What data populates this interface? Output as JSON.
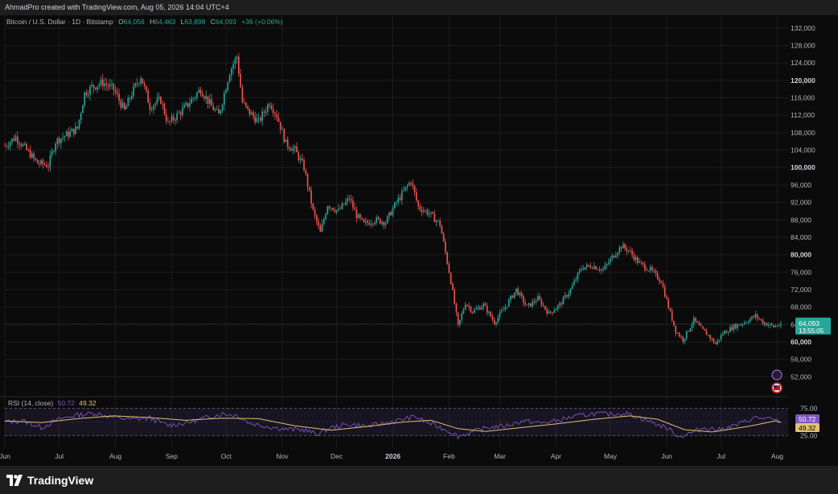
{
  "header": {
    "caption": "AhmadPro created with TradingView.com, Aug 05, 2026 14:04 UTC+4"
  },
  "legend": {
    "symbol": "Bitcoin / U.S. Dollar · 1D · Bitstamp",
    "o_label": "O",
    "o_value": "64,056",
    "h_label": "H",
    "h_value": "64,463",
    "l_label": "L",
    "l_value": "63,898",
    "c_label": "C",
    "c_value": "64,093",
    "change": "+36 (+0.06%)"
  },
  "colors": {
    "up": "#26a69a",
    "down": "#ef5350",
    "rsi": "#7e57c2",
    "rsi_ma": "#e2c26a",
    "grid": "#1c1c1c",
    "axis_text": "#b2b5be",
    "price_tag": "#26a69a"
  },
  "price_tag": {
    "price": "64,093",
    "countdown": "13:55:05",
    "value": 64093
  },
  "rsi_panel": {
    "label": "RSI (14, close)",
    "rsi_value": "50.72",
    "ma_value": "49.32",
    "upper_band": "75.00",
    "lower_band": "25.00",
    "ylim": [
      10,
      90
    ]
  },
  "icons": [
    "news-flag-icon",
    "us-flag-icon"
  ],
  "footer": {
    "brand": "TradingView",
    "brand_icon": "tradingview-logo-icon"
  },
  "chart_data": {
    "type": "candlestick",
    "title": "Bitcoin / U.S. Dollar · 1D · Bitstamp",
    "y_ticks": [
      "132,000",
      "128,000",
      "124,000",
      "120,000",
      "116,000",
      "112,000",
      "108,000",
      "104,000",
      "100,000",
      "96,000",
      "92,000",
      "88,000",
      "84,000",
      "80,000",
      "76,000",
      "72,000",
      "68,000",
      "64,000",
      "60,000",
      "56,000",
      "52,000"
    ],
    "y_tick_values": [
      132000,
      128000,
      124000,
      120000,
      116000,
      112000,
      108000,
      104000,
      100000,
      96000,
      92000,
      88000,
      84000,
      80000,
      76000,
      72000,
      68000,
      64000,
      60000,
      56000,
      52000
    ],
    "bold_ticks": [
      "120,000",
      "100,000",
      "80,000",
      "60,000"
    ],
    "ylim": [
      48000,
      134000
    ],
    "x_ticks": [
      {
        "label": "Jun",
        "day": 0
      },
      {
        "label": "Jul",
        "day": 30
      },
      {
        "label": "Aug",
        "day": 61
      },
      {
        "label": "Sep",
        "day": 92
      },
      {
        "label": "Oct",
        "day": 122
      },
      {
        "label": "Nov",
        "day": 153
      },
      {
        "label": "Dec",
        "day": 183
      },
      {
        "label": "2026",
        "day": 214
      },
      {
        "label": "Feb",
        "day": 245
      },
      {
        "label": "Mar",
        "day": 273
      },
      {
        "label": "Apr",
        "day": 304
      },
      {
        "label": "May",
        "day": 334
      },
      {
        "label": "Jun",
        "day": 365
      },
      {
        "label": "Jul",
        "day": 395
      },
      {
        "label": "Aug",
        "day": 426
      }
    ],
    "bold_x_ticks": [
      "2026"
    ],
    "close_path": [
      [
        0,
        105000
      ],
      [
        6,
        107000
      ],
      [
        12,
        104000
      ],
      [
        18,
        101000
      ],
      [
        24,
        100500
      ],
      [
        28,
        106000
      ],
      [
        34,
        107500
      ],
      [
        40,
        109000
      ],
      [
        44,
        117000
      ],
      [
        48,
        118500
      ],
      [
        54,
        119500
      ],
      [
        60,
        118000
      ],
      [
        66,
        113000
      ],
      [
        70,
        117000
      ],
      [
        75,
        121000
      ],
      [
        80,
        114000
      ],
      [
        86,
        115500
      ],
      [
        90,
        110000
      ],
      [
        95,
        112000
      ],
      [
        100,
        114000
      ],
      [
        108,
        118000
      ],
      [
        114,
        114000
      ],
      [
        118,
        112000
      ],
      [
        124,
        122000
      ],
      [
        128,
        125500
      ],
      [
        131,
        115000
      ],
      [
        134,
        113000
      ],
      [
        140,
        110500
      ],
      [
        146,
        115000
      ],
      [
        150,
        112000
      ],
      [
        155,
        105500
      ],
      [
        160,
        104000
      ],
      [
        165,
        100000
      ],
      [
        170,
        90000
      ],
      [
        174,
        85000
      ],
      [
        178,
        91500
      ],
      [
        184,
        90000
      ],
      [
        190,
        93000
      ],
      [
        194,
        89000
      ],
      [
        198,
        87000
      ],
      [
        204,
        88000
      ],
      [
        210,
        87500
      ],
      [
        216,
        92000
      ],
      [
        220,
        94500
      ],
      [
        224,
        97000
      ],
      [
        228,
        91000
      ],
      [
        234,
        89500
      ],
      [
        240,
        87000
      ],
      [
        246,
        74000
      ],
      [
        250,
        63500
      ],
      [
        254,
        69000
      ],
      [
        258,
        67000
      ],
      [
        264,
        68500
      ],
      [
        270,
        64500
      ],
      [
        276,
        68000
      ],
      [
        282,
        72000
      ],
      [
        288,
        68000
      ],
      [
        294,
        70000
      ],
      [
        300,
        66500
      ],
      [
        306,
        68500
      ],
      [
        312,
        72000
      ],
      [
        318,
        77000
      ],
      [
        324,
        77500
      ],
      [
        330,
        76500
      ],
      [
        336,
        80000
      ],
      [
        340,
        82000
      ],
      [
        344,
        81000
      ],
      [
        350,
        78000
      ],
      [
        356,
        76500
      ],
      [
        362,
        74000
      ],
      [
        366,
        68000
      ],
      [
        370,
        62500
      ],
      [
        374,
        60500
      ],
      [
        380,
        65000
      ],
      [
        384,
        63000
      ],
      [
        388,
        61500
      ],
      [
        392,
        59500
      ],
      [
        396,
        62000
      ],
      [
        402,
        63500
      ],
      [
        408,
        64500
      ],
      [
        414,
        66000
      ],
      [
        418,
        64500
      ],
      [
        424,
        63500
      ],
      [
        428,
        64093
      ]
    ],
    "rsi_path": [
      [
        0,
        50
      ],
      [
        10,
        52
      ],
      [
        20,
        40
      ],
      [
        30,
        55
      ],
      [
        40,
        63
      ],
      [
        50,
        66
      ],
      [
        60,
        58
      ],
      [
        70,
        55
      ],
      [
        80,
        57
      ],
      [
        90,
        44
      ],
      [
        100,
        48
      ],
      [
        110,
        57
      ],
      [
        120,
        65
      ],
      [
        128,
        62
      ],
      [
        135,
        48
      ],
      [
        145,
        42
      ],
      [
        155,
        37
      ],
      [
        165,
        36
      ],
      [
        172,
        28
      ],
      [
        180,
        40
      ],
      [
        190,
        46
      ],
      [
        200,
        42
      ],
      [
        210,
        48
      ],
      [
        220,
        55
      ],
      [
        226,
        60
      ],
      [
        234,
        48
      ],
      [
        244,
        35
      ],
      [
        250,
        24
      ],
      [
        256,
        30
      ],
      [
        266,
        40
      ],
      [
        276,
        43
      ],
      [
        286,
        52
      ],
      [
        296,
        48
      ],
      [
        304,
        52
      ],
      [
        314,
        60
      ],
      [
        324,
        65
      ],
      [
        334,
        64
      ],
      [
        342,
        66
      ],
      [
        350,
        58
      ],
      [
        358,
        48
      ],
      [
        366,
        38
      ],
      [
        372,
        23
      ],
      [
        378,
        30
      ],
      [
        386,
        40
      ],
      [
        394,
        36
      ],
      [
        404,
        45
      ],
      [
        414,
        58
      ],
      [
        420,
        56
      ],
      [
        428,
        50.72
      ]
    ],
    "rsi_ma_path": [
      [
        0,
        52
      ],
      [
        20,
        49
      ],
      [
        40,
        56
      ],
      [
        60,
        61
      ],
      [
        80,
        58
      ],
      [
        100,
        53
      ],
      [
        120,
        57
      ],
      [
        140,
        56
      ],
      [
        160,
        43
      ],
      [
        180,
        35
      ],
      [
        200,
        42
      ],
      [
        220,
        50
      ],
      [
        235,
        53
      ],
      [
        250,
        38
      ],
      [
        265,
        33
      ],
      [
        285,
        40
      ],
      [
        305,
        47
      ],
      [
        325,
        55
      ],
      [
        345,
        61
      ],
      [
        360,
        55
      ],
      [
        375,
        36
      ],
      [
        390,
        32
      ],
      [
        410,
        42
      ],
      [
        425,
        52
      ],
      [
        428,
        49.32
      ]
    ]
  }
}
